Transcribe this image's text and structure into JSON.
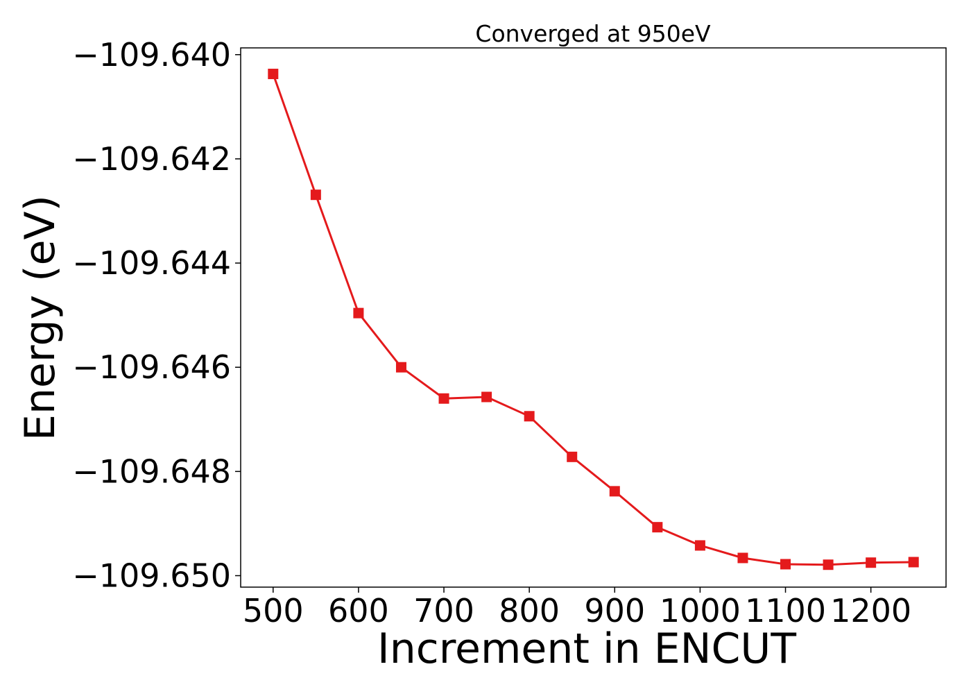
{
  "chart_data": {
    "type": "line",
    "title": "Converged at 950eV",
    "xlabel": "Increment in ENCUT",
    "ylabel": "Energy (eV)",
    "x": [
      500,
      550,
      600,
      650,
      700,
      750,
      800,
      850,
      900,
      950,
      1000,
      1050,
      1100,
      1150,
      1200,
      1250
    ],
    "series": [
      {
        "values": [
          -109.64037,
          -109.64269,
          -109.64496,
          -109.646,
          -109.6466,
          -109.64657,
          -109.64694,
          -109.64772,
          -109.64838,
          -109.64907,
          -109.64942,
          -109.64966,
          -109.64978,
          -109.64979,
          -109.64975,
          -109.64974
        ],
        "color": "#e41a1c",
        "marker": "square"
      }
    ],
    "xlim": [
      462,
      1288
    ],
    "ylim": [
      -109.65022,
      -109.63987
    ],
    "xticks": [
      500,
      600,
      700,
      800,
      900,
      1000,
      1100,
      1200
    ],
    "xtick_labels": [
      "500",
      "600",
      "700",
      "800",
      "900",
      "1000",
      "1100",
      "1200"
    ],
    "yticks": [
      -109.64,
      -109.642,
      -109.644,
      -109.646,
      -109.648,
      -109.65
    ],
    "ytick_labels": [
      "−109.640",
      "−109.642",
      "−109.644",
      "−109.646",
      "−109.648",
      "−109.650"
    ],
    "grid": false,
    "legend": "none"
  }
}
